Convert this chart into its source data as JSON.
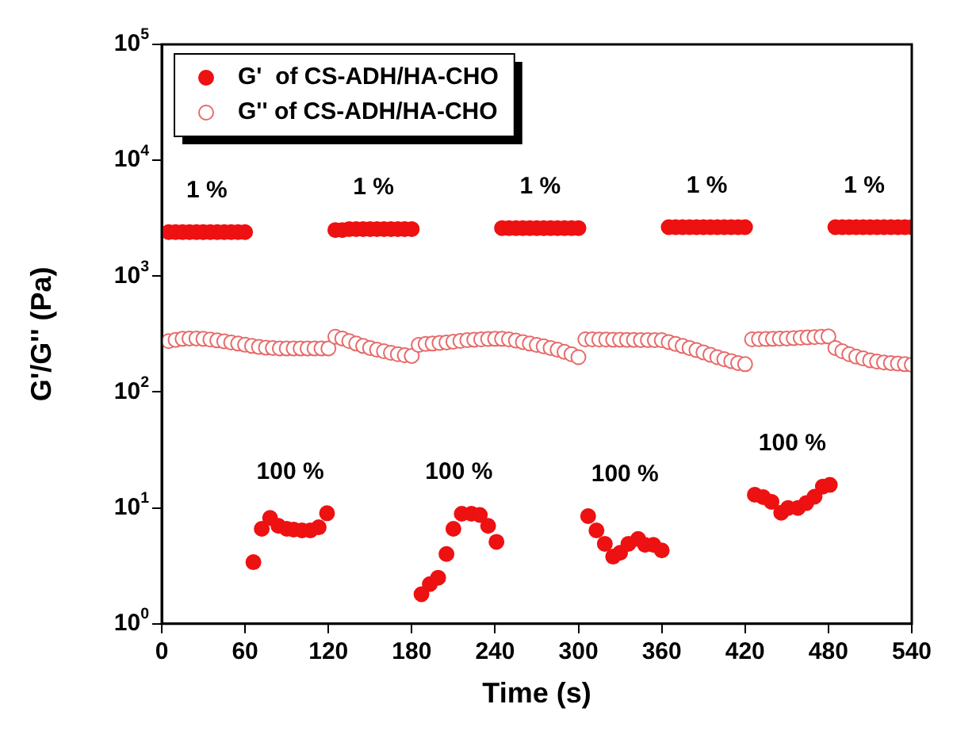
{
  "chart_data": {
    "type": "scatter",
    "xlabel": "Time (s)",
    "ylabel": "G'/G'' (Pa)",
    "xlim": [
      0,
      540
    ],
    "xticks": [
      0,
      60,
      120,
      180,
      240,
      300,
      360,
      420,
      480,
      540
    ],
    "ylim": [
      1,
      100000
    ],
    "yticks": [
      {
        "value": 1,
        "label": "10$^{0}$"
      },
      {
        "value": 10,
        "label": "10$^{1}$"
      },
      {
        "value": 100,
        "label": "10$^{2}$"
      },
      {
        "value": 1000,
        "label": "10$^{3}$"
      },
      {
        "value": 10000,
        "label": "10$^{4}$"
      },
      {
        "value": 100000,
        "label": "10$^{5}$"
      }
    ],
    "log": "y",
    "grid": false,
    "legend": "top left",
    "marker": "circle",
    "series": [
      {
        "name": "G'  of CS-ADH/HA-CHO",
        "color": "#ee1111",
        "x": [
          5,
          10,
          15,
          20,
          25,
          30,
          35,
          40,
          45,
          50,
          55,
          60,
          66,
          72,
          78,
          84,
          90,
          95,
          101,
          107,
          113,
          119,
          125,
          130,
          135,
          140,
          145,
          150,
          155,
          160,
          165,
          170,
          175,
          180,
          187,
          193,
          199,
          205,
          210,
          216,
          223,
          229,
          235,
          241,
          245,
          250,
          255,
          260,
          265,
          270,
          275,
          280,
          285,
          290,
          295,
          300,
          307,
          313,
          319,
          325,
          330,
          336,
          343,
          348,
          354,
          360,
          365,
          370,
          375,
          380,
          385,
          390,
          395,
          400,
          405,
          410,
          415,
          420,
          427,
          433,
          439,
          446,
          451,
          458,
          464,
          470,
          476,
          481,
          485,
          490,
          495,
          500,
          505,
          510,
          515,
          520,
          525,
          530,
          535,
          540
        ],
        "values": [
          2400,
          2400,
          2400,
          2400,
          2400,
          2400,
          2400,
          2400,
          2400,
          2400,
          2400,
          2400,
          3.4,
          6.6,
          8.2,
          7,
          6.6,
          6.5,
          6.4,
          6.4,
          6.8,
          9,
          2500,
          2500,
          2550,
          2550,
          2550,
          2550,
          2550,
          2550,
          2550,
          2550,
          2550,
          2550,
          1.8,
          2.2,
          2.5,
          4,
          6.6,
          8.9,
          8.9,
          8.7,
          7,
          5.1,
          2600,
          2600,
          2600,
          2600,
          2600,
          2600,
          2600,
          2600,
          2600,
          2600,
          2600,
          2600,
          8.5,
          6.4,
          4.9,
          3.8,
          4.1,
          4.9,
          5.4,
          4.8,
          4.8,
          4.3,
          2650,
          2650,
          2650,
          2650,
          2650,
          2650,
          2650,
          2650,
          2650,
          2650,
          2650,
          2650,
          13,
          12.4,
          11.3,
          9.1,
          10,
          10,
          11,
          12.5,
          15.3,
          15.8,
          2650,
          2650,
          2650,
          2650,
          2650,
          2650,
          2650,
          2650,
          2650,
          2650,
          2650,
          2650
        ]
      },
      {
        "name": "G'' of CS-ADH/HA-CHO",
        "color": "#e86a6a",
        "x": [
          5,
          10,
          15,
          20,
          25,
          30,
          35,
          40,
          45,
          50,
          55,
          60,
          65,
          70,
          75,
          80,
          85,
          90,
          95,
          100,
          105,
          110,
          115,
          120,
          125,
          130,
          135,
          140,
          145,
          150,
          155,
          160,
          165,
          170,
          175,
          180,
          185,
          190,
          195,
          200,
          205,
          210,
          215,
          220,
          225,
          230,
          235,
          240,
          245,
          250,
          255,
          260,
          265,
          270,
          275,
          280,
          285,
          290,
          295,
          300,
          305,
          310,
          315,
          320,
          325,
          330,
          335,
          340,
          345,
          350,
          355,
          360,
          365,
          370,
          375,
          380,
          385,
          390,
          395,
          400,
          405,
          410,
          415,
          420,
          425,
          430,
          435,
          440,
          445,
          450,
          455,
          460,
          465,
          470,
          475,
          480,
          485,
          490,
          495,
          500,
          505,
          510,
          515,
          520,
          525,
          530,
          535,
          540
        ],
        "values": [
          275,
          282,
          288,
          290,
          290,
          288,
          284,
          279,
          274,
          268,
          262,
          256,
          250,
          245,
          242,
          240,
          238,
          238,
          238,
          238,
          238,
          238,
          238,
          238,
          300,
          290,
          275,
          262,
          250,
          240,
          232,
          225,
          218,
          212,
          208,
          205,
          255,
          260,
          262,
          265,
          268,
          272,
          276,
          280,
          283,
          285,
          287,
          288,
          288,
          285,
          278,
          270,
          262,
          255,
          248,
          240,
          232,
          222,
          212,
          200,
          285,
          285,
          284,
          284,
          283,
          283,
          282,
          282,
          281,
          281,
          280,
          280,
          270,
          260,
          250,
          240,
          230,
          220,
          210,
          200,
          192,
          185,
          178,
          174,
          285,
          286,
          287,
          288,
          289,
          290,
          292,
          294,
          296,
          298,
          300,
          302,
          240,
          225,
          212,
          202,
          195,
          188,
          183,
          180,
          178,
          176,
          174,
          172
        ]
      }
    ],
    "annotations": [
      "1 %",
      "100 %",
      "1 %",
      "100 %",
      "1 %",
      "100 %",
      "1 %",
      "100 %",
      "1 %"
    ]
  }
}
